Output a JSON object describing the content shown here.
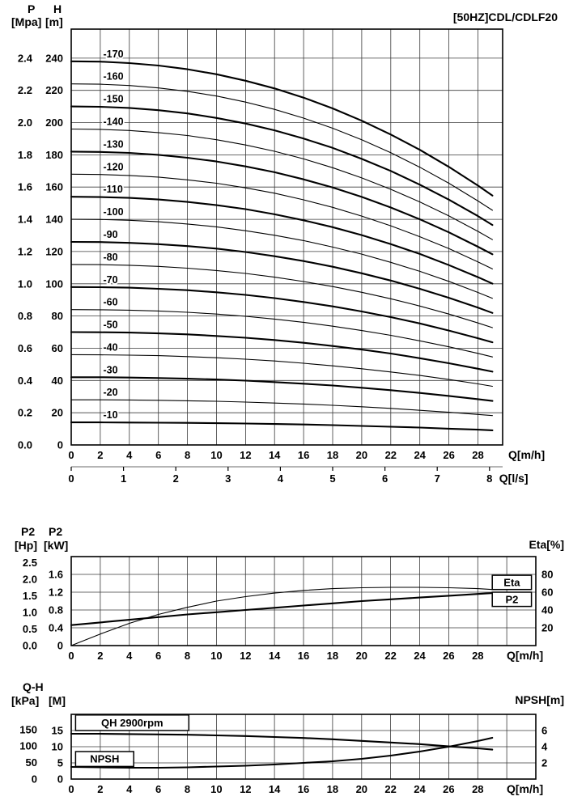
{
  "chart_data": [
    {
      "id": "head",
      "type": "line",
      "title": "[50HZ]CDL/CDLF20",
      "xlim": [
        0,
        29.7
      ],
      "ylim": [
        0,
        258
      ],
      "x_axis": {
        "label": "Q[m/h]",
        "ticks": [
          0,
          2,
          4,
          6,
          8,
          10,
          12,
          14,
          16,
          18,
          20,
          22,
          24,
          26,
          28
        ],
        "grid": [
          2,
          4,
          6,
          8,
          10,
          12,
          14,
          16,
          18,
          20,
          22,
          24,
          26,
          28
        ]
      },
      "x2_axis": {
        "label": "Q[l/s]",
        "ticks": [
          0,
          1,
          2,
          3,
          4,
          5,
          6,
          7,
          8
        ],
        "unit_scale": 3.6
      },
      "y_grid": [
        20,
        40,
        60,
        80,
        100,
        120,
        140,
        160,
        180,
        200,
        220,
        240
      ],
      "left_axis": {
        "columns": [
          {
            "title": "P",
            "unit": "[Mpa]",
            "ticks": [
              {
                "label": "2.4",
                "at": 240
              },
              {
                "label": "2.2",
                "at": 220
              },
              {
                "label": "2.0",
                "at": 200
              },
              {
                "label": "1.8",
                "at": 180
              },
              {
                "label": "1.6",
                "at": 160
              },
              {
                "label": "1.4",
                "at": 140
              },
              {
                "label": "1.2",
                "at": 120
              },
              {
                "label": "1.0",
                "at": 100
              },
              {
                "label": "0.8",
                "at": 80
              },
              {
                "label": "0.6",
                "at": 60
              },
              {
                "label": "0.4",
                "at": 40
              },
              {
                "label": "0.2",
                "at": 20
              },
              {
                "label": "0.0",
                "at": 0
              }
            ]
          },
          {
            "title": "H",
            "unit": "[m]",
            "ticks": [
              {
                "label": "240",
                "at": 240
              },
              {
                "label": "220",
                "at": 220
              },
              {
                "label": "200",
                "at": 200
              },
              {
                "label": "180",
                "at": 180
              },
              {
                "label": "160",
                "at": 160
              },
              {
                "label": "140",
                "at": 140
              },
              {
                "label": "120",
                "at": 120
              },
              {
                "label": "100",
                "at": 100
              },
              {
                "label": "80",
                "at": 80
              },
              {
                "label": "60",
                "at": 60
              },
              {
                "label": "40",
                "at": 40
              },
              {
                "label": "20",
                "at": 20
              },
              {
                "label": "0",
                "at": 0
              }
            ]
          }
        ]
      },
      "series_label_x": 2.2,
      "x_points": [
        0,
        2,
        4,
        6,
        8,
        10,
        12,
        14,
        16,
        18,
        20,
        22,
        24,
        26,
        28,
        29
      ],
      "series": [
        {
          "name": "-170",
          "bold": true,
          "values": [
            238,
            237.8,
            236.9,
            235.4,
            233.1,
            230,
            226,
            221.2,
            215.5,
            208.8,
            201.2,
            192.6,
            183.1,
            172.5,
            160.9,
            154.7
          ]
        },
        {
          "name": "-160",
          "bold": false,
          "values": [
            224,
            223.8,
            223,
            221.5,
            219.4,
            216.5,
            212.7,
            208.2,
            202.8,
            196.5,
            189.4,
            181.3,
            172.3,
            162.4,
            151.4,
            145.6
          ]
        },
        {
          "name": "-150",
          "bold": true,
          "values": [
            210,
            209.8,
            209.1,
            207.7,
            205.7,
            202.9,
            199.4,
            195.2,
            190.1,
            184.3,
            177.5,
            170,
            161.5,
            152.2,
            142,
            136.5
          ]
        },
        {
          "name": "-140",
          "bold": false,
          "values": [
            196,
            195.8,
            195.1,
            193.8,
            192,
            189.4,
            186.1,
            182.2,
            177.5,
            172,
            165.7,
            158.6,
            150.8,
            142.1,
            132.5,
            127.4
          ]
        },
        {
          "name": "-130",
          "bold": true,
          "values": [
            182,
            181.8,
            181.2,
            180,
            178.2,
            175.9,
            172.8,
            169.2,
            164.8,
            159.7,
            153.9,
            147.3,
            140,
            131.9,
            123,
            118.3
          ]
        },
        {
          "name": "-120",
          "bold": false,
          "values": [
            168,
            167.8,
            167.2,
            166.2,
            164.5,
            162.4,
            159.5,
            156.2,
            152.1,
            147.4,
            142,
            136,
            129.2,
            121.8,
            113.6,
            109.2
          ]
        },
        {
          "name": "-110",
          "bold": true,
          "values": [
            154,
            153.8,
            153.3,
            152.3,
            150.8,
            148.8,
            146.3,
            143.1,
            139.4,
            135.1,
            130.2,
            124.6,
            118.5,
            111.6,
            104.1,
            100.1
          ]
        },
        {
          "name": "-100",
          "bold": false,
          "values": [
            140,
            139.9,
            139.4,
            138.5,
            137.1,
            135.3,
            132.9,
            130.1,
            126.8,
            122.8,
            118.4,
            113.3,
            107.7,
            101.5,
            94.6,
            91
          ]
        },
        {
          "name": "-90",
          "bold": true,
          "values": [
            126,
            125.9,
            125.4,
            124.6,
            123.4,
            121.8,
            119.7,
            117.1,
            114.1,
            110.6,
            106.5,
            102,
            96.9,
            91.3,
            85.2,
            81.9
          ]
        },
        {
          "name": "-80",
          "bold": false,
          "values": [
            112,
            111.9,
            111.5,
            110.8,
            109.7,
            108.2,
            106.4,
            104.1,
            101.4,
            98.3,
            94.7,
            90.7,
            86.2,
            81.2,
            75.7,
            72.8
          ]
        },
        {
          "name": "-70",
          "bold": true,
          "values": [
            98,
            97.9,
            97.6,
            96.9,
            96,
            94.7,
            93.1,
            91.1,
            88.7,
            86,
            82.8,
            79.3,
            75.4,
            71,
            66.2,
            63.7
          ]
        },
        {
          "name": "-60",
          "bold": false,
          "values": [
            84,
            83.9,
            83.6,
            83.1,
            82.3,
            81.2,
            79.8,
            78.1,
            76.1,
            73.7,
            71,
            68,
            64.6,
            60.9,
            56.8,
            54.6
          ]
        },
        {
          "name": "-50",
          "bold": true,
          "values": [
            70,
            69.9,
            69.7,
            69.2,
            68.6,
            67.6,
            66.5,
            65.1,
            63.4,
            61.4,
            59.2,
            56.7,
            53.8,
            50.7,
            47.3,
            45.5
          ]
        },
        {
          "name": "-40",
          "bold": false,
          "values": [
            56,
            55.9,
            55.7,
            55.4,
            54.8,
            54.1,
            53.2,
            52.1,
            50.7,
            49.1,
            47.3,
            45.3,
            43.1,
            40.6,
            37.9,
            36.4
          ]
        },
        {
          "name": "-30",
          "bold": true,
          "values": [
            42,
            42,
            41.8,
            41.5,
            41.1,
            40.6,
            39.9,
            39,
            38,
            36.9,
            35.5,
            34,
            32.3,
            30.4,
            28.4,
            27.3
          ]
        },
        {
          "name": "-20",
          "bold": false,
          "values": [
            28,
            28,
            27.9,
            27.7,
            27.4,
            27.1,
            26.6,
            26,
            25.4,
            24.6,
            23.7,
            22.7,
            21.5,
            20.3,
            18.9,
            18.2
          ]
        },
        {
          "name": "-10",
          "bold": true,
          "values": [
            14,
            14,
            13.9,
            13.8,
            13.7,
            13.5,
            13.3,
            13,
            12.7,
            12.3,
            11.8,
            11.3,
            10.8,
            10.1,
            9.5,
            9.1
          ]
        }
      ]
    },
    {
      "id": "power",
      "type": "line",
      "xlim": [
        0,
        32
      ],
      "ylim": [
        0,
        2.0
      ],
      "x_axis": {
        "label": "Q[m/h]",
        "ticks": [
          0,
          2,
          4,
          6,
          8,
          10,
          12,
          14,
          16,
          18,
          20,
          22,
          24,
          26,
          28
        ],
        "grid": [
          2,
          4,
          6,
          8,
          10,
          12,
          14,
          16,
          18,
          20,
          22,
          24,
          26,
          28,
          30
        ]
      },
      "y_grid": [
        0.4,
        0.8,
        1.2,
        1.6
      ],
      "left_axis": {
        "columns": [
          {
            "title": "P2",
            "unit": "[Hp]",
            "ticks": [
              {
                "label": "2.5",
                "at": 1.864
              },
              {
                "label": "2.0",
                "at": 1.491
              },
              {
                "label": "1.5",
                "at": 1.118
              },
              {
                "label": "1.0",
                "at": 0.746
              },
              {
                "label": "0.5",
                "at": 0.373
              },
              {
                "label": "0.0",
                "at": 0
              }
            ]
          },
          {
            "title": "P2",
            "unit": "[kW]",
            "ticks": [
              {
                "label": "1.6",
                "at": 1.6
              },
              {
                "label": "1.2",
                "at": 1.2
              },
              {
                "label": "0.8",
                "at": 0.8
              },
              {
                "label": "0.4",
                "at": 0.4
              },
              {
                "label": "0",
                "at": 0
              }
            ]
          }
        ]
      },
      "right_axis": {
        "title": "Eta[%]",
        "ticks": [
          {
            "label": "80",
            "at": 1.6
          },
          {
            "label": "60",
            "at": 1.2
          },
          {
            "label": "40",
            "at": 0.8
          },
          {
            "label": "20",
            "at": 0.4
          }
        ]
      },
      "x_points": [
        0,
        2,
        4,
        6,
        8,
        10,
        12,
        14,
        16,
        18,
        20,
        22,
        24,
        26,
        28,
        29
      ],
      "series": [
        {
          "name": "Eta",
          "bold": false,
          "unit": "%",
          "to_left": 0.02,
          "values": [
            0,
            13,
            25,
            35,
            43,
            50,
            55,
            59,
            62,
            64,
            65,
            65.5,
            65.5,
            65,
            64,
            63
          ]
        },
        {
          "name": "P2",
          "bold": true,
          "unit": "kW",
          "to_left": 1,
          "values": [
            0.46,
            0.52,
            0.58,
            0.64,
            0.7,
            0.75,
            0.8,
            0.85,
            0.9,
            0.95,
            1,
            1.04,
            1.08,
            1.12,
            1.16,
            1.18
          ]
        }
      ],
      "annotations": [
        {
          "text": "Eta",
          "x": 29.0,
          "y": 1.42,
          "w": 2.7,
          "h": 0.32
        },
        {
          "text": "P2",
          "x": 29.0,
          "y": 1.04,
          "w": 2.7,
          "h": 0.32
        }
      ]
    },
    {
      "id": "npsh",
      "type": "line",
      "xlim": [
        0,
        32
      ],
      "ylim": [
        0,
        20
      ],
      "x_axis": {
        "label": "Q[m/h]",
        "ticks": [
          0,
          2,
          4,
          6,
          8,
          10,
          12,
          14,
          16,
          18,
          20,
          22,
          24,
          26,
          28
        ],
        "grid": [
          2,
          4,
          6,
          8,
          10,
          12,
          14,
          16,
          18,
          20,
          22,
          24,
          26,
          28,
          30
        ]
      },
      "y_grid": [
        5,
        10,
        15
      ],
      "left_axis": {
        "columns": [
          {
            "title": "Q-H",
            "unit": "[kPa]",
            "ticks": [
              {
                "label": "150",
                "at": 15.3
              },
              {
                "label": "100",
                "at": 10.2
              },
              {
                "label": "50",
                "at": 5.1
              },
              {
                "label": "0",
                "at": 0
              }
            ]
          },
          {
            "title": "",
            "unit": "[M]",
            "ticks": [
              {
                "label": "15",
                "at": 15
              },
              {
                "label": "10",
                "at": 10
              },
              {
                "label": "5",
                "at": 5
              },
              {
                "label": "0",
                "at": 0
              }
            ]
          }
        ]
      },
      "right_axis": {
        "title": "NPSH[m]",
        "ticks": [
          {
            "label": "6",
            "at": 15
          },
          {
            "label": "4",
            "at": 10
          },
          {
            "label": "2",
            "at": 5
          }
        ]
      },
      "x_points": [
        0,
        2,
        4,
        6,
        8,
        10,
        12,
        14,
        16,
        18,
        20,
        22,
        24,
        26,
        28,
        29
      ],
      "series": [
        {
          "name": "QH 2900rpm",
          "bold": true,
          "unit": "M",
          "to_left": 1,
          "values": [
            14,
            14,
            13.9,
            13.8,
            13.7,
            13.5,
            13.3,
            13,
            12.7,
            12.3,
            11.8,
            11.3,
            10.8,
            10.1,
            9.5,
            9.1
          ]
        },
        {
          "name": "NPSH",
          "bold": true,
          "unit": "m",
          "to_left": 2.5,
          "values": [
            1.5,
            1.45,
            1.4,
            1.4,
            1.45,
            1.55,
            1.65,
            1.8,
            2,
            2.2,
            2.5,
            2.9,
            3.4,
            4,
            4.7,
            5.1
          ]
        }
      ],
      "annotations": [
        {
          "text": "QH 2900rpm",
          "x": 0.3,
          "y": 17.4,
          "w": 7.8,
          "h": 4.8
        },
        {
          "text": "NPSH",
          "x": 0.3,
          "y": 6.2,
          "w": 4.0,
          "h": 4.6
        }
      ]
    }
  ],
  "colors": {
    "ink": "#000000",
    "grid": "#3a3a3a",
    "background": "#ffffff"
  }
}
